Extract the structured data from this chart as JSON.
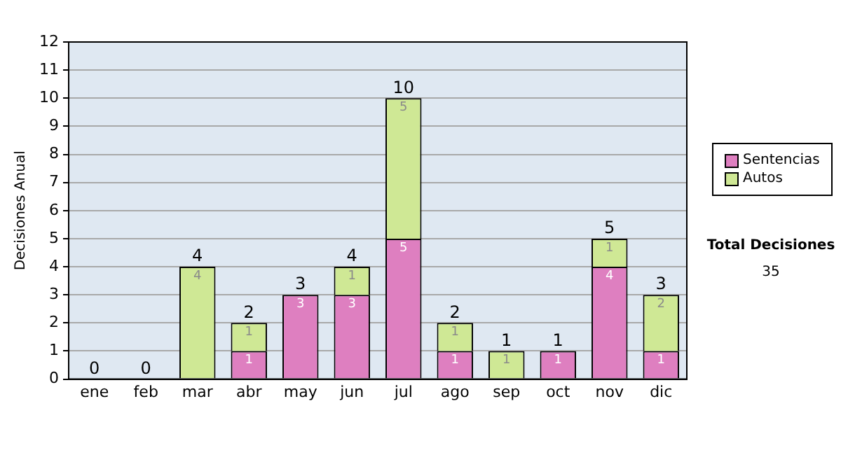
{
  "chart_data": {
    "type": "bar",
    "stacked": true,
    "ylabel": "Decisiones Anual",
    "categories": [
      "ene",
      "feb",
      "mar",
      "abr",
      "may",
      "jun",
      "jul",
      "ago",
      "sep",
      "oct",
      "nov",
      "dic"
    ],
    "series": [
      {
        "name": "Sentencias",
        "color": "#de7fc0",
        "values": [
          0,
          0,
          0,
          1,
          3,
          3,
          5,
          1,
          0,
          1,
          4,
          1
        ],
        "value_labels": [
          null,
          null,
          null,
          "1",
          "3",
          "3",
          "5",
          "1",
          null,
          "1",
          "4",
          "1"
        ]
      },
      {
        "name": "Autos",
        "color": "#cfe895",
        "values": [
          0,
          0,
          4,
          1,
          0,
          1,
          5,
          1,
          1,
          0,
          1,
          2
        ],
        "value_labels": [
          null,
          null,
          "4",
          "1",
          null,
          "1",
          "5",
          "1",
          "1",
          null,
          "1",
          "2"
        ]
      }
    ],
    "totals": [
      "0",
      "0",
      "4",
      "2",
      "3",
      "4",
      "10",
      "2",
      "1",
      "1",
      "5",
      "3"
    ],
    "ylim": [
      0,
      12
    ],
    "yticks": [
      0,
      1,
      2,
      3,
      4,
      5,
      6,
      7,
      8,
      9,
      10,
      11,
      12
    ],
    "grid": "y",
    "legend": "right",
    "annotations": [
      "Total Decisiones",
      "35"
    ]
  }
}
